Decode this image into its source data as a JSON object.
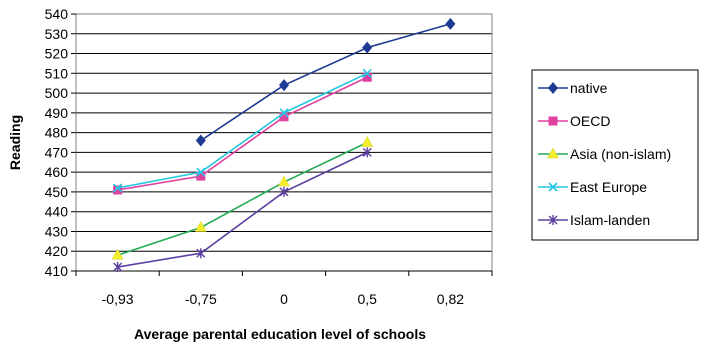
{
  "chart_data": {
    "type": "line",
    "categories": [
      "-0,93",
      "-0,75",
      "0",
      "0,5",
      "0,82"
    ],
    "xlabel": "Average parental education level of schools",
    "ylabel": "Reading",
    "ylim": [
      410,
      540
    ],
    "ytick_step": 10,
    "grid": "horizontal",
    "legend_position": "right",
    "series": [
      {
        "name": "native",
        "color": "#1f3a93",
        "marker": "diamond",
        "values": [
          null,
          476,
          504,
          523,
          535
        ]
      },
      {
        "name": "OECD",
        "color": "#e040a0",
        "marker": "square",
        "values": [
          451,
          458,
          488,
          508,
          null
        ]
      },
      {
        "name": "Asia (non-islam)",
        "color": "#22aa55",
        "marker": "triangle",
        "values": [
          418,
          432,
          455,
          475,
          null
        ]
      },
      {
        "name": "East Europe",
        "color": "#22c8e0",
        "marker": "x",
        "values": [
          452,
          460,
          490,
          510,
          null
        ]
      },
      {
        "name": "Islam-landen",
        "color": "#5a3ea0",
        "marker": "star",
        "values": [
          412,
          419,
          450,
          470,
          null
        ]
      }
    ]
  }
}
